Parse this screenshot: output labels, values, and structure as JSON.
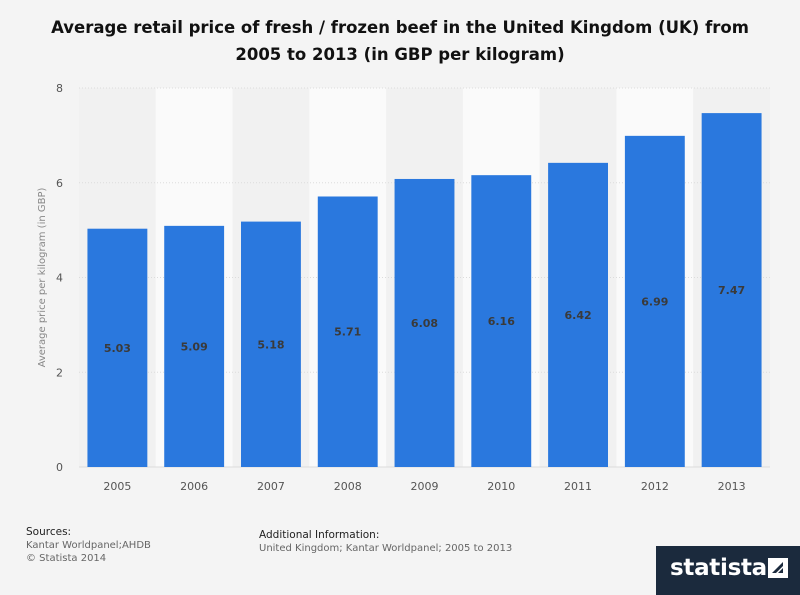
{
  "title_line1": "Average retail price of fresh / frozen beef in the United Kingdom (UK) from",
  "title_line2": "2005 to 2013 (in GBP per kilogram)",
  "chart_data": {
    "type": "bar",
    "categories": [
      "2005",
      "2006",
      "2007",
      "2008",
      "2009",
      "2010",
      "2011",
      "2012",
      "2013"
    ],
    "values": [
      5.03,
      5.09,
      5.18,
      5.71,
      6.08,
      6.16,
      6.42,
      6.99,
      7.47
    ],
    "value_labels": [
      "5.03",
      "5.09",
      "5.18",
      "5.71",
      "6.08",
      "6.16",
      "6.42",
      "6.99",
      "7.47"
    ],
    "ylabel": "Average price per kilogram (in GBP)",
    "ylim": [
      0,
      8
    ],
    "yticks": [
      "0",
      "2",
      "4",
      "6",
      "8"
    ],
    "grid": true,
    "bar_color": "#2a78de"
  },
  "footer": {
    "sources_label": "Sources:",
    "sources_line1": "Kantar Worldpanel;AHDB",
    "sources_line2": "© Statista 2014",
    "additional_label": "Additional Information:",
    "additional_text": "United Kingdom; Kantar Worldpanel; 2005 to 2013"
  },
  "logo": {
    "text": "statista",
    "icon": "statista-logo-icon"
  }
}
